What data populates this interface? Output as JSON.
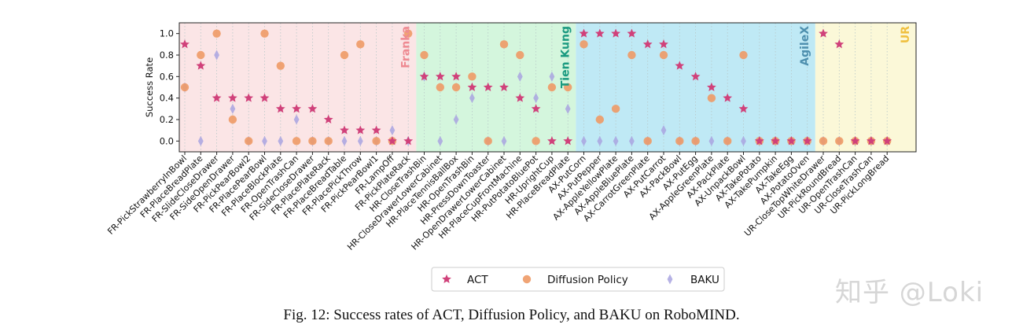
{
  "caption": "Fig. 12: Success rates of ACT, Diffusion Policy, and BAKU on RoboMIND.",
  "watermark": "知乎 @Loki",
  "colors": {
    "act": "#d0417a",
    "dp": "#ee9a66",
    "baku": "#a9a4e0",
    "franka_bg": "#fbe5e6",
    "tienkung_bg": "#d4f6dd",
    "agilex_bg": "#bfe9f5",
    "ur_bg": "#fbf8d8",
    "franka_label": "#ee8a92",
    "tienkung_label": "#1a9a80",
    "agilex_label": "#4d8fae",
    "ur_label": "#f0c040"
  },
  "chart_data": {
    "type": "scatter",
    "title": "",
    "xlabel": "",
    "ylabel": "Success Rate",
    "ylim": [
      -0.1,
      1.1
    ],
    "yticks": [
      0.0,
      0.2,
      0.4,
      0.6,
      0.8,
      1.0
    ],
    "ytick_labels": [
      "0.0",
      "0.2",
      "0.4",
      "0.6",
      "0.8",
      "1.0"
    ],
    "categories": [
      "FR-PickStrawberryInBowl",
      "FR-PlaceBreadPlate",
      "FR-SlideCloseDrawer",
      "FR-SideOpenDrawer",
      "FR-PickPearBowl2",
      "FR-PlacePearBowl",
      "FR-PlaceBlockPlate",
      "FR-OpenTrashCan",
      "FR-SideCloseDrawer",
      "FR-PlacePlateRack",
      "FR-PlaceBreadTable",
      "FR-PlacePickThrow",
      "FR-PickPearBowl1",
      "FR-LampOff",
      "FR-PickPlateRack",
      "HR-CloseTrashBin",
      "HR-CloseDrawerLowerCabinet",
      "HR-PlaceTennisBallBox",
      "HR-OpenTrashBin",
      "HR-PressDownToaster",
      "HR-OpenDrawerLowerCabinet",
      "HR-PlaceCupFrontMachine",
      "HR-PutPotatoBluePot",
      "HR-UprightCup",
      "HR-PlaceBreadPlate",
      "AX-PutCorn",
      "AX-PutPepper",
      "AX-AppleYellowPlate",
      "AX-AppleBluePlate",
      "AX-CarrotGreenPlate",
      "AX-PutCarrot",
      "AX-PackBowl",
      "AX-PutEgg",
      "AX-AppleGreenPlate",
      "AX-PackPlate",
      "AX-UnpackBowl",
      "AX-TakePotato",
      "AX-TakePumpkin",
      "AX-TakeEgg",
      "AX-PotatoOven",
      "UR-CloseTopWhiteDrawer",
      "UR-PickRoundBread",
      "UR-OpenTrashCan",
      "UR-CloseTrashCan",
      "UR-PickLongBread"
    ],
    "series": [
      {
        "name": "ACT",
        "marker": "star",
        "values": [
          0.9,
          0.7,
          0.4,
          0.4,
          0.4,
          0.4,
          0.3,
          0.3,
          0.3,
          0.2,
          0.1,
          0.1,
          0.1,
          0.0,
          0.0,
          0.6,
          0.6,
          0.6,
          0.5,
          0.5,
          0.5,
          0.4,
          0.3,
          0.0,
          0.0,
          1.0,
          1.0,
          1.0,
          1.0,
          0.9,
          0.9,
          0.7,
          0.6,
          0.5,
          0.4,
          0.3,
          0.0,
          0.0,
          0.0,
          0.0,
          1.0,
          0.9,
          0.0,
          0.0,
          0.0
        ]
      },
      {
        "name": "Diffusion Policy",
        "marker": "circle",
        "values": [
          0.5,
          0.8,
          1.0,
          0.2,
          0.0,
          1.0,
          0.7,
          0.0,
          0.0,
          0.0,
          0.8,
          0.9,
          0.0,
          0.0,
          1.0,
          0.8,
          0.5,
          0.5,
          0.6,
          0.0,
          0.9,
          0.8,
          0.0,
          0.5,
          0.5,
          0.9,
          0.2,
          0.3,
          0.8,
          0.0,
          0.8,
          0.0,
          0.0,
          0.4,
          0.0,
          0.8,
          0.0,
          0.0,
          0.0,
          0.0,
          0.0,
          0.0,
          0.0,
          0.0,
          0.0
        ]
      },
      {
        "name": "BAKU",
        "marker": "diamond",
        "values": [
          0.5,
          0.0,
          0.8,
          0.3,
          0.0,
          0.0,
          0.0,
          0.2,
          0.0,
          0.0,
          0.0,
          0.0,
          0.0,
          0.1,
          0.0,
          0.6,
          0.0,
          0.2,
          0.4,
          0.0,
          0.0,
          0.6,
          0.4,
          0.6,
          0.3,
          0.0,
          0.0,
          0.0,
          0.0,
          0.0,
          0.1,
          0.0,
          0.0,
          0.0,
          0.0,
          0.0,
          0.0,
          0.0,
          0.0,
          0.0,
          0.0,
          0.0,
          0.0,
          0.0,
          0.0
        ]
      }
    ],
    "regions": [
      {
        "name": "Franka",
        "start_index": 0,
        "end_index": 14
      },
      {
        "name": "Tien Kung",
        "start_index": 15,
        "end_index": 24
      },
      {
        "name": "AgileX",
        "start_index": 25,
        "end_index": 39
      },
      {
        "name": "UR",
        "start_index": 40,
        "end_index": 44
      }
    ],
    "legend_position": "bottom-center",
    "grid": "vertical dotted"
  }
}
